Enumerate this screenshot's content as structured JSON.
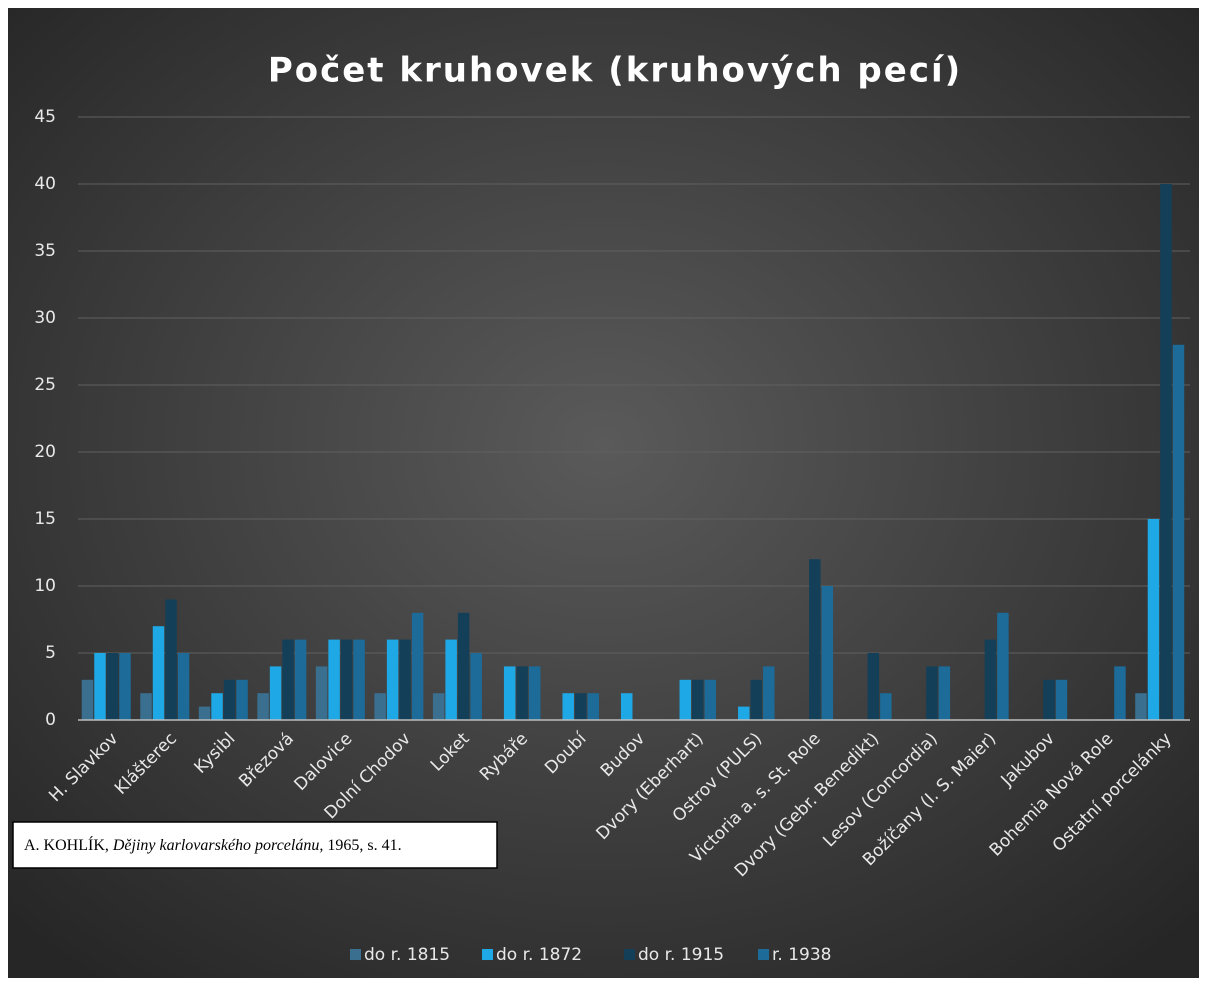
{
  "chart_data": {
    "type": "bar",
    "title": "Počet kruhovek (kruhových pecí)",
    "categories": [
      "H. Slavkov",
      "Klášterec",
      "Kysibl",
      "Březová",
      "Dalovice",
      "Dolní Chodov",
      "Loket",
      "Rybáře",
      "Doubí",
      "Budov",
      "Dvory (Eberhart)",
      "Ostrov (PULS)",
      "Victoria a. s. St. Role",
      "Dvory (Gebr. Benedikt)",
      "Lesov (Concordia)",
      "Božíčany (I. S. Maier)",
      "Jakubov",
      "Bohemia Nová Role",
      "Ostatní porcelánky"
    ],
    "series": [
      {
        "name": "do r. 1815",
        "color": "#3a6f8f",
        "values": [
          3,
          2,
          1,
          2,
          4,
          2,
          2,
          0,
          0,
          0,
          0,
          0,
          0,
          0,
          0,
          0,
          0,
          0,
          2
        ]
      },
      {
        "name": "do r. 1872",
        "color": "#1ea8e6",
        "values": [
          5,
          7,
          2,
          4,
          6,
          6,
          6,
          4,
          2,
          2,
          3,
          1,
          0,
          0,
          0,
          0,
          0,
          0,
          15
        ]
      },
      {
        "name": "do r. 1915",
        "color": "#143f58",
        "values": [
          5,
          9,
          3,
          6,
          6,
          6,
          8,
          4,
          2,
          0,
          3,
          3,
          12,
          5,
          4,
          6,
          3,
          0,
          40
        ]
      },
      {
        "name": "r. 1938",
        "color": "#1c6b98",
        "values": [
          5,
          5,
          3,
          6,
          6,
          8,
          5,
          4,
          2,
          0,
          3,
          4,
          10,
          2,
          4,
          8,
          3,
          4,
          28
        ]
      }
    ],
    "ylim": [
      0,
      45
    ],
    "yticks": [
      0,
      5,
      10,
      15,
      20,
      25,
      30,
      35,
      40,
      45
    ],
    "grid": true,
    "legend": "bottom",
    "source": {
      "author": "A. KOHLÍK,",
      "work": "Dějiny karlovarského porcelánu,",
      "details": "1965, s. 41."
    }
  }
}
